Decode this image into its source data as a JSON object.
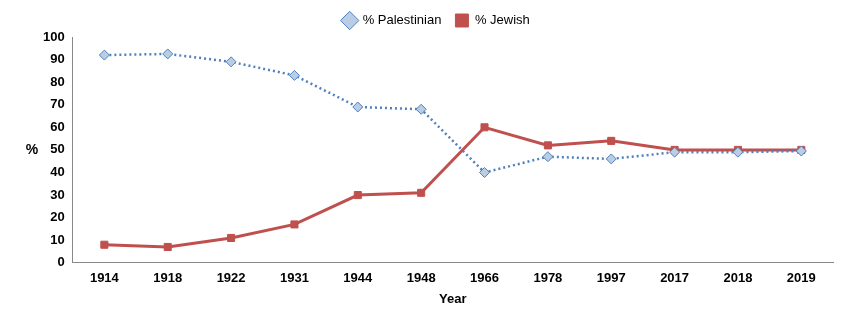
{
  "chart_data": {
    "type": "line",
    "x_label": "Year",
    "y_label": "%",
    "categories": [
      "1914",
      "1918",
      "1922",
      "1931",
      "1944",
      "1948",
      "1966",
      "1978",
      "1997",
      "2017",
      "2018",
      "2019"
    ],
    "series": [
      {
        "name": "% Palestinian",
        "color": "#4f81bd",
        "marker": "diamond",
        "line_style": "dotted",
        "values": [
          92,
          92.5,
          89,
          83,
          69,
          68,
          40,
          47,
          46,
          49,
          49,
          49.5
        ]
      },
      {
        "name": "% Jewish",
        "color": "#c0504d",
        "marker": "square",
        "line_style": "solid",
        "values": [
          8,
          7,
          11,
          17,
          30,
          31,
          60,
          52,
          54,
          50,
          50,
          50
        ]
      }
    ],
    "ylim": [
      0,
      100
    ],
    "yticks": [
      0,
      10,
      20,
      30,
      40,
      50,
      60,
      70,
      80,
      90,
      100
    ],
    "grid": false,
    "legend": "top"
  }
}
